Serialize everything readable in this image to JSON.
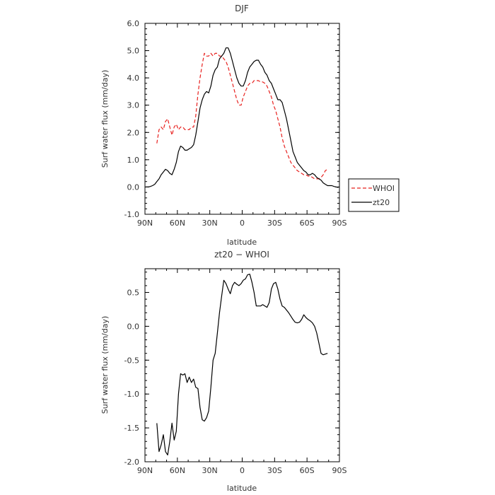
{
  "chart_data": [
    {
      "type": "line",
      "title": "DJF",
      "xlabel": "latitude",
      "ylabel": "Surf water flux (mm/day)",
      "xlim": [
        90,
        -90
      ],
      "ylim": [
        -1.0,
        6.0
      ],
      "xticks": [
        90,
        60,
        30,
        0,
        -30,
        -60,
        -90
      ],
      "xtick_labels": [
        "90N",
        "60N",
        "30N",
        "0",
        "30S",
        "60S",
        "90S"
      ],
      "yticks": [
        -1.0,
        0.0,
        1.0,
        2.0,
        3.0,
        4.0,
        5.0,
        6.0
      ],
      "ytick_labels": [
        "-1.0",
        "0.0",
        "1.0",
        "2.0",
        "3.0",
        "4.0",
        "5.0",
        "6.0"
      ],
      "legend": "right",
      "series": [
        {
          "name": "WHOI",
          "color": "#e8211f",
          "dash": "dashed",
          "x": [
            79,
            77,
            75,
            73,
            71,
            69,
            67,
            65,
            63,
            61,
            59,
            57,
            55,
            53,
            51,
            49,
            47,
            45,
            43,
            41,
            39,
            37,
            35,
            33,
            31,
            29,
            27,
            25,
            23,
            21,
            19,
            17,
            15,
            13,
            11,
            9,
            7,
            5,
            3,
            1,
            -1,
            -3,
            -5,
            -7,
            -9,
            -11,
            -13,
            -15,
            -17,
            -19,
            -21,
            -23,
            -25,
            -27,
            -29,
            -31,
            -33,
            -35,
            -37,
            -39,
            -41,
            -43,
            -45,
            -47,
            -49,
            -51,
            -53,
            -55,
            -57,
            -59,
            -61,
            -63,
            -65,
            -67,
            -69,
            -71,
            -73,
            -75,
            -77,
            -79
          ],
          "y": [
            1.6,
            2.1,
            2.2,
            2.1,
            2.4,
            2.5,
            2.2,
            1.9,
            2.2,
            2.3,
            2.1,
            2.2,
            2.2,
            2.1,
            2.1,
            2.1,
            2.2,
            2.2,
            2.6,
            3.4,
            4.0,
            4.5,
            4.9,
            4.8,
            4.8,
            4.9,
            4.8,
            4.9,
            4.9,
            4.8,
            4.8,
            4.7,
            4.6,
            4.4,
            4.1,
            3.8,
            3.5,
            3.2,
            3.0,
            3.0,
            3.3,
            3.5,
            3.7,
            3.8,
            3.8,
            3.9,
            3.9,
            3.9,
            3.85,
            3.85,
            3.8,
            3.7,
            3.5,
            3.3,
            3.0,
            2.8,
            2.5,
            2.2,
            1.8,
            1.5,
            1.3,
            1.1,
            0.9,
            0.8,
            0.7,
            0.6,
            0.55,
            0.5,
            0.45,
            0.45,
            0.4,
            0.4,
            0.35,
            0.3,
            0.3,
            0.3,
            0.35,
            0.45,
            0.6,
            0.65
          ]
        },
        {
          "name": "zt20",
          "color": "#000000",
          "dash": "solid",
          "x": [
            89,
            87,
            85,
            83,
            81,
            79,
            77,
            75,
            73,
            71,
            69,
            67,
            65,
            63,
            61,
            59,
            57,
            55,
            53,
            51,
            49,
            47,
            45,
            43,
            41,
            39,
            37,
            35,
            33,
            31,
            29,
            27,
            25,
            23,
            21,
            19,
            17,
            15,
            13,
            11,
            9,
            7,
            5,
            3,
            1,
            -1,
            -3,
            -5,
            -7,
            -9,
            -11,
            -13,
            -15,
            -17,
            -19,
            -21,
            -23,
            -25,
            -27,
            -29,
            -31,
            -33,
            -35,
            -37,
            -39,
            -41,
            -43,
            -45,
            -47,
            -49,
            -51,
            -53,
            -55,
            -57,
            -59,
            -61,
            -63,
            -65,
            -67,
            -69,
            -71,
            -73,
            -75,
            -77,
            -79,
            -81,
            -83,
            -85,
            -87,
            -89
          ],
          "y": [
            0.0,
            0.0,
            0.02,
            0.05,
            0.1,
            0.2,
            0.3,
            0.45,
            0.55,
            0.65,
            0.6,
            0.5,
            0.45,
            0.65,
            0.9,
            1.3,
            1.5,
            1.45,
            1.35,
            1.35,
            1.4,
            1.45,
            1.55,
            1.9,
            2.4,
            2.9,
            3.2,
            3.4,
            3.5,
            3.45,
            3.7,
            4.1,
            4.3,
            4.4,
            4.7,
            4.8,
            4.9,
            5.1,
            5.1,
            4.9,
            4.6,
            4.3,
            4.0,
            3.8,
            3.7,
            3.7,
            3.9,
            4.2,
            4.4,
            4.5,
            4.6,
            4.65,
            4.65,
            4.5,
            4.4,
            4.2,
            4.1,
            3.9,
            3.8,
            3.6,
            3.4,
            3.2,
            3.2,
            3.1,
            2.8,
            2.5,
            2.1,
            1.7,
            1.3,
            1.1,
            0.9,
            0.8,
            0.7,
            0.6,
            0.55,
            0.45,
            0.45,
            0.5,
            0.45,
            0.35,
            0.3,
            0.25,
            0.15,
            0.1,
            0.05,
            0.05,
            0.05,
            0.02,
            0.0,
            -0.02
          ]
        }
      ]
    },
    {
      "type": "line",
      "title": "zt20 − WHOI",
      "xlabel": "latitude",
      "ylabel": "Surf water flux (mm/day)",
      "xlim": [
        90,
        -90
      ],
      "ylim": [
        -2.0,
        0.85
      ],
      "xticks": [
        90,
        60,
        30,
        0,
        -30,
        -60,
        -90
      ],
      "xtick_labels": [
        "90N",
        "60N",
        "30N",
        "0",
        "30S",
        "60S",
        "90S"
      ],
      "yticks": [
        -2.0,
        -1.5,
        -1.0,
        -0.5,
        0.0,
        0.5
      ],
      "ytick_labels": [
        "-2.0",
        "-1.5",
        "-1.0",
        "-0.5",
        "0.0",
        "0.5"
      ],
      "series": [
        {
          "name": "",
          "color": "#000000",
          "dash": "solid",
          "x": [
            79,
            77,
            75,
            73,
            71,
            69,
            67,
            65,
            63,
            61,
            59,
            57,
            55,
            53,
            51,
            49,
            47,
            45,
            43,
            41,
            39,
            37,
            35,
            33,
            31,
            29,
            27,
            25,
            23,
            21,
            19,
            17,
            15,
            13,
            11,
            9,
            7,
            5,
            3,
            1,
            -1,
            -3,
            -5,
            -7,
            -9,
            -11,
            -13,
            -15,
            -17,
            -19,
            -21,
            -23,
            -25,
            -27,
            -29,
            -31,
            -33,
            -35,
            -37,
            -39,
            -41,
            -43,
            -45,
            -47,
            -49,
            -51,
            -53,
            -55,
            -57,
            -59,
            -61,
            -63,
            -65,
            -67,
            -69,
            -71,
            -73,
            -75,
            -77,
            -79
          ],
          "y": [
            -1.43,
            -1.85,
            -1.75,
            -1.6,
            -1.85,
            -1.9,
            -1.7,
            -1.43,
            -1.68,
            -1.55,
            -1.0,
            -0.7,
            -0.72,
            -0.7,
            -0.83,
            -0.75,
            -0.83,
            -0.78,
            -0.9,
            -0.92,
            -1.2,
            -1.38,
            -1.4,
            -1.35,
            -1.25,
            -0.9,
            -0.5,
            -0.4,
            -0.1,
            0.2,
            0.45,
            0.68,
            0.63,
            0.55,
            0.48,
            0.6,
            0.65,
            0.62,
            0.6,
            0.63,
            0.68,
            0.7,
            0.76,
            0.77,
            0.65,
            0.5,
            0.3,
            0.3,
            0.3,
            0.32,
            0.3,
            0.28,
            0.35,
            0.55,
            0.63,
            0.65,
            0.55,
            0.4,
            0.3,
            0.28,
            0.24,
            0.2,
            0.15,
            0.1,
            0.06,
            0.05,
            0.06,
            0.1,
            0.17,
            0.13,
            0.1,
            0.08,
            0.05,
            0.0,
            -0.1,
            -0.25,
            -0.4,
            -0.42,
            -0.41,
            -0.4
          ]
        }
      ]
    }
  ]
}
